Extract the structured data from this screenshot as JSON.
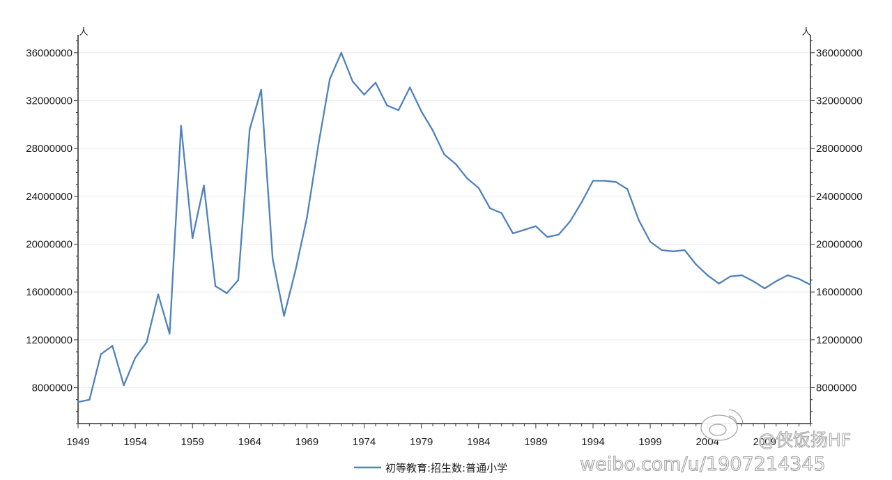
{
  "chart_data": {
    "type": "line",
    "title": "",
    "xlabel": "",
    "ylabel": "人",
    "y2label": "人",
    "xlim": [
      1949,
      2013
    ],
    "ylim": [
      5000000,
      37500000
    ],
    "y_ticks": [
      8000000,
      12000000,
      16000000,
      20000000,
      24000000,
      28000000,
      32000000,
      36000000
    ],
    "y_tick_labels": [
      "8000000",
      "12000000",
      "16000000",
      "20000000",
      "24000000",
      "28000000",
      "32000000",
      "36000000"
    ],
    "x_ticks": [
      1949,
      1954,
      1959,
      1964,
      1969,
      1974,
      1979,
      1984,
      1989,
      1994,
      1999,
      2004,
      2009
    ],
    "x_tick_labels": [
      "1949",
      "1954",
      "1959",
      "1964",
      "1969",
      "1974",
      "1979",
      "1984",
      "1989",
      "1994",
      "1999",
      "2004",
      "2009"
    ],
    "legend_position": "bottom-center",
    "series": [
      {
        "name": "初等教育:招生数:普通小学",
        "color": "#4f81bd",
        "x": [
          1949,
          1950,
          1951,
          1952,
          1953,
          1954,
          1955,
          1956,
          1957,
          1958,
          1959,
          1960,
          1961,
          1962,
          1963,
          1964,
          1965,
          1966,
          1967,
          1968,
          1969,
          1970,
          1971,
          1972,
          1973,
          1974,
          1975,
          1976,
          1977,
          1978,
          1979,
          1980,
          1981,
          1982,
          1983,
          1984,
          1985,
          1986,
          1987,
          1988,
          1989,
          1990,
          1991,
          1992,
          1993,
          1994,
          1995,
          1996,
          1997,
          1998,
          1999,
          2000,
          2001,
          2002,
          2003,
          2004,
          2005,
          2006,
          2007,
          2008,
          2009,
          2010,
          2011,
          2012,
          2013
        ],
        "values": [
          6800000,
          7000000,
          10800000,
          11500000,
          8200000,
          10500000,
          11800000,
          15800000,
          12500000,
          29900000,
          20500000,
          24900000,
          16500000,
          15900000,
          17000000,
          29600000,
          32900000,
          18800000,
          14000000,
          17800000,
          22200000,
          28300000,
          33800000,
          36000000,
          33600000,
          32500000,
          33500000,
          31600000,
          31200000,
          33100000,
          31100000,
          29500000,
          27500000,
          26700000,
          25500000,
          24700000,
          23000000,
          22600000,
          20900000,
          21200000,
          21500000,
          20600000,
          20800000,
          21900000,
          23500000,
          25300000,
          25300000,
          25200000,
          24600000,
          22000000,
          20200000,
          19500000,
          19400000,
          19500000,
          18300000,
          17400000,
          16700000,
          17300000,
          17400000,
          16900000,
          16300000,
          16900000,
          17400000,
          17100000,
          16600000
        ]
      }
    ]
  },
  "watermark": {
    "handle": "@侠饭扬HF",
    "url": "weibo.com/u/1907214345"
  }
}
